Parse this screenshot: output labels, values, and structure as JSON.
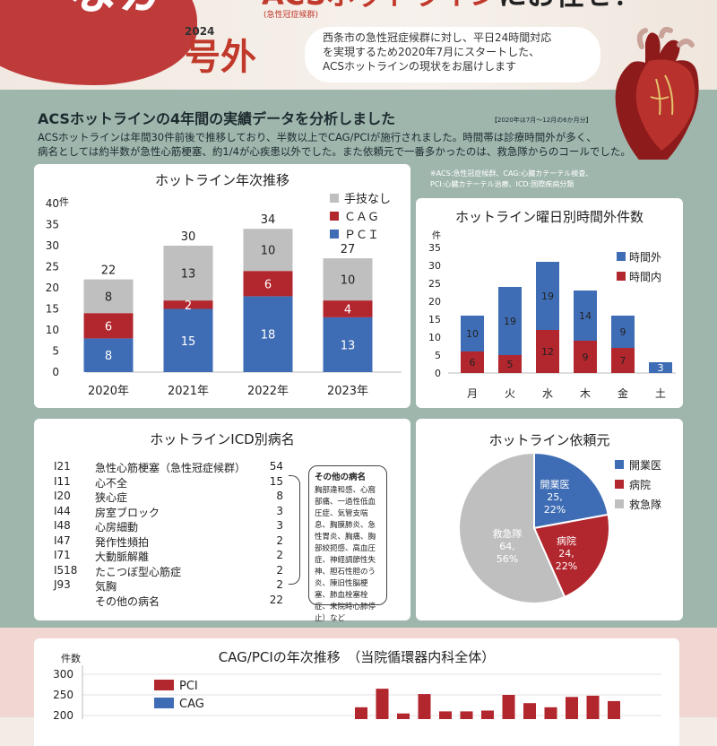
{
  "header": {
    "title_naka": "なか",
    "year": "2024",
    "gogai": "号外",
    "headline_red": "ACSホットライン",
    "headline_dark": "にお任せ！",
    "acs_note": "(急性冠症候群)",
    "intro_lines": [
      "西条市の急性冠症候群に対し、平日24時間対応",
      "を実現するため2020年7月にスタートした、",
      "ACSホットラインの現状をお届けします"
    ]
  },
  "section": {
    "title": "ACSホットラインの4年間の実績データを分析しました",
    "note": "【2020年は7月〜12月の6か月分】",
    "desc_line1": "ACSホットラインは年間30件前後で推移しており、半数以上でCAG/PCIが施行されました。時間帯は診療時間外が多く、",
    "desc_line2": "病名としては約半数が急性心筋梗塞、約1/4が心疾患以外でした。また依頼元で一番多かったのは、救急隊からのコールでした。",
    "abbr_line1": "※ACS:急性冠症候群、CAG:心臓カテーテル検査、",
    "abbr_line2": "PCI:心臓カテーテル治療、ICD:国際疾病分類"
  },
  "colors": {
    "pci": "#3f6db5",
    "cag": "#b2262e",
    "none": "#bfbfbf",
    "band": "#9fb6ad",
    "accent": "#c0392b"
  },
  "chart_data": [
    {
      "type": "bar",
      "title": "ホットライン年次推移",
      "ylabel": "件",
      "ylim": [
        0,
        40
      ],
      "yticks": [
        0,
        5,
        10,
        15,
        20,
        25,
        30,
        35,
        40
      ],
      "categories": [
        "2020年",
        "2021年",
        "2022年",
        "2023年"
      ],
      "series": [
        {
          "name": "ＰＣＩ",
          "values": [
            8,
            15,
            18,
            13
          ]
        },
        {
          "name": "ＣＡＧ",
          "values": [
            6,
            2,
            6,
            4
          ]
        },
        {
          "name": "手技なし",
          "values": [
            8,
            13,
            10,
            10
          ]
        }
      ],
      "totals": [
        22,
        30,
        34,
        27
      ],
      "stacked": true,
      "legend": "top-right"
    },
    {
      "type": "bar",
      "title": "ホットライン曜日別時間外件数",
      "ylabel": "件",
      "ylim": [
        0,
        35
      ],
      "yticks": [
        0,
        5,
        10,
        15,
        20,
        25,
        30,
        35
      ],
      "categories": [
        "月",
        "火",
        "水",
        "木",
        "金",
        "土"
      ],
      "series": [
        {
          "name": "時間内",
          "values": [
            6,
            5,
            12,
            9,
            7,
            0
          ]
        },
        {
          "name": "時間外",
          "values": [
            10,
            19,
            19,
            14,
            9,
            3
          ]
        }
      ],
      "stacked": true,
      "legend": "right"
    },
    {
      "type": "pie",
      "title": "ホットライン依頼元",
      "slices": [
        {
          "name": "開業医",
          "value": 25,
          "pct": "22%"
        },
        {
          "name": "病院",
          "value": 24,
          "pct": "22%"
        },
        {
          "name": "救急隊",
          "value": 64,
          "pct": "56%"
        }
      ],
      "legend": "right"
    },
    {
      "type": "table",
      "title": "ホットラインICD別病名",
      "rows": [
        {
          "code": "I21",
          "name": "急性心筋梗塞（急性冠症候群）",
          "count": "54"
        },
        {
          "code": "I11",
          "name": "心不全",
          "count": "15"
        },
        {
          "code": "I20",
          "name": "狭心症",
          "count": "8"
        },
        {
          "code": "I44",
          "name": "房室ブロック",
          "count": "3"
        },
        {
          "code": "I48",
          "name": "心房細動",
          "count": "3"
        },
        {
          "code": "I47",
          "name": "発作性頻拍",
          "count": "2"
        },
        {
          "code": "I71",
          "name": "大動脈解離",
          "count": "2"
        },
        {
          "code": "I518",
          "name": "たこつぼ型心筋症",
          "count": "2"
        },
        {
          "code": "J93",
          "name": "気胸",
          "count": "2"
        },
        {
          "code": "",
          "name": "その他の病名",
          "count": "22"
        }
      ],
      "other_title": "その他の病名",
      "other_text": "胸部違和感、心窩部痛、一過性低血圧症、気管支喘息、胸膜肺炎、急性胃炎、胸痛、胸部絞扼感、高血圧症、神経調節性失神、胆石性胆のう炎、陳旧性脳梗塞、肺血栓塞栓症、来院時心肺停止）など"
    },
    {
      "type": "bar",
      "title": "CAG/PCIの年次推移　（当院循環器内科全体）",
      "ylabel": "件数",
      "ylim": [
        0,
        300
      ],
      "yticks": [
        200,
        250,
        300
      ],
      "series": [
        {
          "name": "PCI",
          "values": []
        },
        {
          "name": "CAG",
          "values": []
        }
      ],
      "visible_bar_tops": [
        220,
        265,
        205,
        252,
        210,
        210,
        212,
        250,
        230,
        220,
        245,
        248,
        235
      ]
    }
  ]
}
